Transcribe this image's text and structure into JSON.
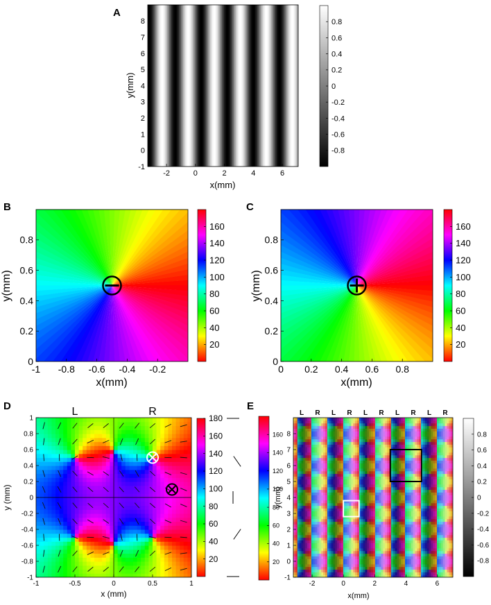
{
  "panels": {
    "A": {
      "letter": "A",
      "chart_data": {
        "type": "heatmap",
        "description_values": "cos(2*pi*x/1.8) grating, stripes vertical",
        "xlabel": "x(mm)",
        "ylabel": "y(mm)",
        "xlim": [
          -3.3,
          7.1
        ],
        "ylim": [
          -1,
          9
        ],
        "xticks": [
          -2,
          0,
          2,
          4,
          6
        ],
        "yticks": [
          -1,
          0,
          1,
          2,
          3,
          4,
          5,
          6,
          7,
          8
        ],
        "period": 1.8,
        "phase_x": -0.5,
        "colormap": "gray",
        "colorbar_range": [
          -1,
          1
        ],
        "colorbar_ticks": [
          "-0.8",
          "-0.6",
          "-0.4",
          "-0.2",
          "0",
          "0.2",
          "0.4",
          "0.6",
          "0.8"
        ]
      }
    },
    "B": {
      "letter": "B",
      "chart_data": {
        "type": "heatmap",
        "xlabel": "x(mm)",
        "ylabel": "y(mm)",
        "xlim": [
          -1,
          0
        ],
        "ylim": [
          0,
          1
        ],
        "xticks": [
          "-1",
          "-0.8",
          "-0.6",
          "-0.4",
          "-0.2"
        ],
        "yticks": [
          "0",
          "0.2",
          "0.4",
          "0.6",
          "0.8"
        ],
        "center": [
          -0.5,
          0.5
        ],
        "singularity": "-",
        "orientation_sense": "counterclockwise",
        "colormap": "hsv",
        "colorbar_range": [
          0,
          180
        ],
        "colorbar_ticks": [
          "20",
          "40",
          "60",
          "80",
          "100",
          "120",
          "140",
          "160"
        ]
      }
    },
    "C": {
      "letter": "C",
      "chart_data": {
        "type": "heatmap",
        "xlabel": "x(mm)",
        "ylabel": "y(mm)",
        "xlim": [
          0,
          1
        ],
        "ylim": [
          0,
          1
        ],
        "xticks": [
          "0",
          "0.2",
          "0.4",
          "0.6",
          "0.8"
        ],
        "yticks": [
          "0",
          "0.2",
          "0.4",
          "0.6",
          "0.8"
        ],
        "center": [
          0.5,
          0.5
        ],
        "singularity": "+",
        "orientation_sense": "clockwise",
        "colormap": "hsv",
        "colorbar_range": [
          0,
          180
        ],
        "colorbar_ticks": [
          "20",
          "40",
          "60",
          "80",
          "100",
          "120",
          "140",
          "160"
        ]
      }
    },
    "D": {
      "letter": "D",
      "labels_top": [
        "L",
        "R"
      ],
      "chart_data": {
        "type": "heatmap",
        "xlabel": "x (mm)",
        "ylabel": "y (mm)",
        "xlim": [
          -1,
          1
        ],
        "ylim": [
          -1,
          1
        ],
        "xticks": [
          "-1",
          "-0.5",
          "0",
          "0.5",
          "1"
        ],
        "yticks": [
          "-1",
          "-0.8",
          "-0.6",
          "-0.4",
          "-0.2",
          "0",
          "0.2",
          "0.4",
          "0.6",
          "0.8",
          "1"
        ],
        "pinwheels": [
          [
            -0.5,
            0.5
          ],
          [
            -0.5,
            -0.5
          ],
          [
            0.5,
            0.5
          ],
          [
            0.5,
            -0.5
          ]
        ],
        "markers": [
          {
            "x": 0.5,
            "y": 0.5,
            "color": "#ffffff"
          },
          {
            "x": 0.75,
            "y": 0.1,
            "color": "#000000"
          }
        ],
        "colormap": "hsv",
        "colorbar_range": [
          0,
          180
        ],
        "colorbar_ticks": [
          "20",
          "40",
          "60",
          "80",
          "100",
          "120",
          "140",
          "160",
          "180"
        ]
      }
    },
    "E": {
      "letter": "E",
      "eye_labels": [
        "L",
        "R",
        "L",
        "R",
        "L",
        "R",
        "L",
        "R",
        "L",
        "R"
      ],
      "chart_data": {
        "type": "heatmap",
        "xlabel": "x(mm)",
        "ylabel": "y(mm)",
        "xlim": [
          -3.2,
          7
        ],
        "ylim": [
          -1,
          9
        ],
        "xticks": [
          "-2",
          "0",
          "2",
          "4",
          "6"
        ],
        "yticks": [
          "-1",
          "0",
          "1",
          "2",
          "3",
          "4",
          "5",
          "6",
          "7",
          "8"
        ],
        "boxes": [
          {
            "x0": 0,
            "x1": 1,
            "y0": 2.8,
            "y1": 3.8,
            "color": "#ffffff"
          },
          {
            "x0": 3,
            "x1": 5,
            "y0": 5,
            "y1": 7,
            "color": "#000000"
          }
        ],
        "orientation_colorbar_ticks": [
          "20",
          "40",
          "60",
          "80",
          "100",
          "120",
          "140",
          "160"
        ],
        "ocular_colorbar_ticks": [
          "-0.8",
          "-0.6",
          "-0.4",
          "-0.2",
          "0",
          "0.2",
          "0.4",
          "0.6",
          "0.8"
        ]
      }
    }
  }
}
